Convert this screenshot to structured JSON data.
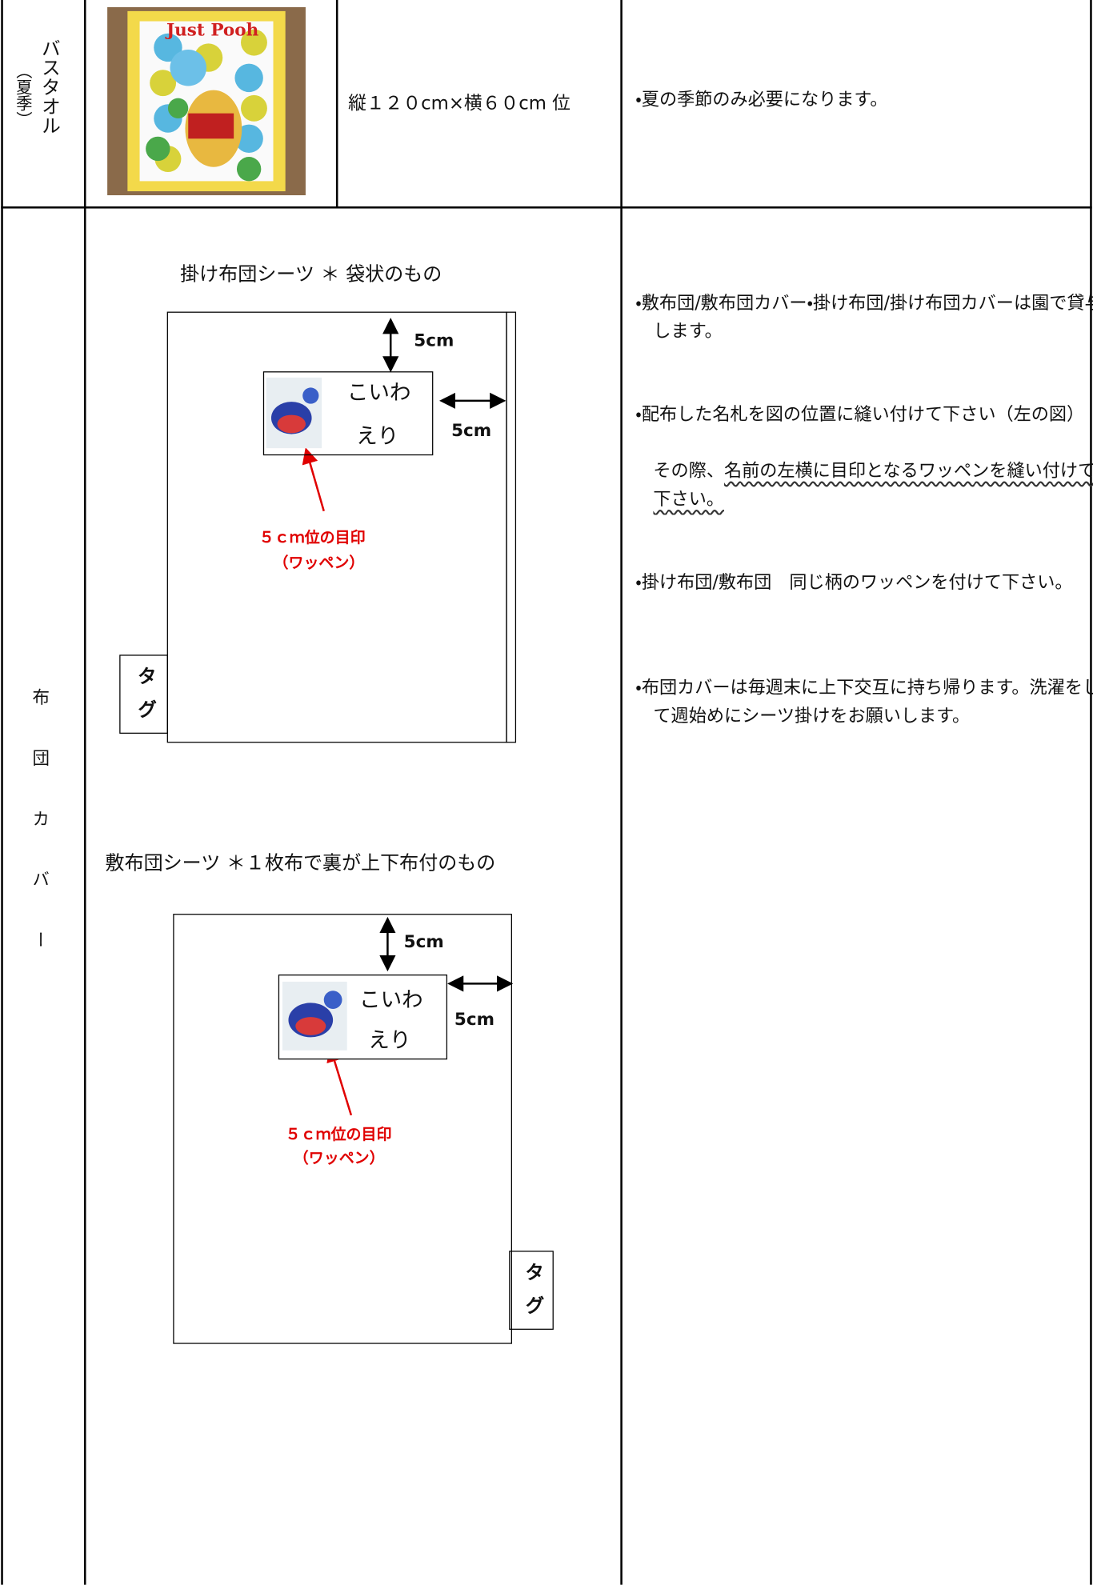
{
  "table": {
    "rows": [
      {
        "item": "バスタオル",
        "item_note": "（夏季）",
        "image_print": "Just Pooh",
        "size": "縦１２０cm×横６０cm 位",
        "notes": [
          "・夏の季節のみ必要になります。"
        ]
      },
      {
        "item": "布団カバー",
        "diagrams": [
          {
            "title": "掛け布団シーツ ＊ 袋状のもの",
            "top_margin": "5cm",
            "side_margin": "5cm",
            "name_line1": "こいわ",
            "name_line2": "えり",
            "mark_label": "５ｃｍ位の目印",
            "mark_note": "（ワッペン）",
            "tag": "タグ"
          },
          {
            "title": "敷布団シーツ ＊１枚布で裏が上下布付のもの",
            "top_margin": "5cm",
            "side_margin": "5cm",
            "name_line1": "こいわ",
            "name_line2": "えり",
            "mark_label": "５ｃｍ位の目印",
            "mark_note": "（ワッペン）",
            "tag": "タグ"
          }
        ],
        "notes": [
          {
            "text": "・敷布団/敷布団カバー・掛け布団/掛け布団カバーは園で貸与します。"
          },
          {
            "text": "・配布した名札を図の位置に縫い付けて下さい（左の図）",
            "continuation": "その際、",
            "underlined": "名前の左横に目印となるワッペンを縫い付けて下さい。"
          },
          {
            "text": "・掛け布団/敷布団　同じ柄のワッペンを付けて下さい。"
          },
          {
            "text": "・布団カバーは毎週末に上下交互に持ち帰ります。洗濯をして週始めにシーツ掛けをお願いします。"
          }
        ]
      }
    ]
  }
}
